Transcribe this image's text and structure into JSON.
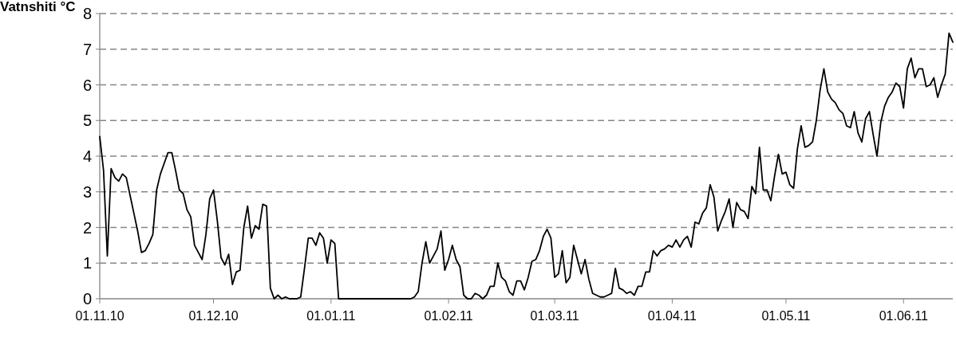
{
  "chart_data": {
    "type": "line",
    "title": "Vatnshiti °C",
    "xlim": [
      "2010-11-01",
      "2011-06-14"
    ],
    "xticks": [
      {
        "value": "2010-11-01",
        "label": "01.11.10"
      },
      {
        "value": "2010-12-01",
        "label": "01.12.10"
      },
      {
        "value": "2011-01-01",
        "label": "01.01.11"
      },
      {
        "value": "2011-02-01",
        "label": "01.02.11"
      },
      {
        "value": "2011-03-01",
        "label": "01.03.11"
      },
      {
        "value": "2011-04-01",
        "label": "01.04.11"
      },
      {
        "value": "2011-05-01",
        "label": "01.05.11"
      },
      {
        "value": "2011-06-01",
        "label": "01.06.11"
      }
    ],
    "ylim": [
      0,
      8
    ],
    "yticks": [
      0,
      1,
      2,
      3,
      4,
      5,
      6,
      7,
      8
    ],
    "grid": "y",
    "marker": "none",
    "line_style": "solid",
    "series": [
      {
        "color": "#000000",
        "x": [
          "2010-11-01",
          "2010-11-02",
          "2010-11-03",
          "2010-11-04",
          "2010-11-05",
          "2010-11-06",
          "2010-11-07",
          "2010-11-08",
          "2010-11-09",
          "2010-11-10",
          "2010-11-11",
          "2010-11-12",
          "2010-11-13",
          "2010-11-14",
          "2010-11-15",
          "2010-11-16",
          "2010-11-17",
          "2010-11-18",
          "2010-11-19",
          "2010-11-20",
          "2010-11-21",
          "2010-11-22",
          "2010-11-23",
          "2010-11-24",
          "2010-11-25",
          "2010-11-26",
          "2010-11-27",
          "2010-11-28",
          "2010-11-29",
          "2010-11-30",
          "2010-12-01",
          "2010-12-02",
          "2010-12-03",
          "2010-12-04",
          "2010-12-05",
          "2010-12-06",
          "2010-12-07",
          "2010-12-08",
          "2010-12-09",
          "2010-12-10",
          "2010-12-11",
          "2010-12-12",
          "2010-12-13",
          "2010-12-14",
          "2010-12-15",
          "2010-12-16",
          "2010-12-17",
          "2010-12-18",
          "2010-12-19",
          "2010-12-20",
          "2010-12-21",
          "2010-12-22",
          "2010-12-23",
          "2010-12-24",
          "2010-12-25",
          "2010-12-26",
          "2010-12-27",
          "2010-12-28",
          "2010-12-29",
          "2010-12-30",
          "2010-12-31",
          "2011-01-01",
          "2011-01-02",
          "2011-01-03",
          "2011-01-04",
          "2011-01-05",
          "2011-01-06",
          "2011-01-07",
          "2011-01-08",
          "2011-01-09",
          "2011-01-10",
          "2011-01-11",
          "2011-01-12",
          "2011-01-13",
          "2011-01-14",
          "2011-01-15",
          "2011-01-16",
          "2011-01-17",
          "2011-01-18",
          "2011-01-19",
          "2011-01-20",
          "2011-01-21",
          "2011-01-22",
          "2011-01-23",
          "2011-01-24",
          "2011-01-25",
          "2011-01-26",
          "2011-01-27",
          "2011-01-28",
          "2011-01-29",
          "2011-01-30",
          "2011-01-31",
          "2011-02-01",
          "2011-02-02",
          "2011-02-03",
          "2011-02-04",
          "2011-02-05",
          "2011-02-06",
          "2011-02-07",
          "2011-02-08",
          "2011-02-09",
          "2011-02-10",
          "2011-02-11",
          "2011-02-12",
          "2011-02-13",
          "2011-02-14",
          "2011-02-15",
          "2011-02-16",
          "2011-02-17",
          "2011-02-18",
          "2011-02-19",
          "2011-02-20",
          "2011-02-21",
          "2011-02-22",
          "2011-02-23",
          "2011-02-24",
          "2011-02-25",
          "2011-02-26",
          "2011-02-27",
          "2011-02-28",
          "2011-03-01",
          "2011-03-02",
          "2011-03-03",
          "2011-03-04",
          "2011-03-05",
          "2011-03-06",
          "2011-03-07",
          "2011-03-08",
          "2011-03-09",
          "2011-03-10",
          "2011-03-11",
          "2011-03-12",
          "2011-03-13",
          "2011-03-14",
          "2011-03-15",
          "2011-03-16",
          "2011-03-17",
          "2011-03-18",
          "2011-03-19",
          "2011-03-20",
          "2011-03-21",
          "2011-03-22",
          "2011-03-23",
          "2011-03-24",
          "2011-03-25",
          "2011-03-26",
          "2011-03-27",
          "2011-03-28",
          "2011-03-29",
          "2011-03-30",
          "2011-03-31",
          "2011-04-01",
          "2011-04-02",
          "2011-04-03",
          "2011-04-04",
          "2011-04-05",
          "2011-04-06",
          "2011-04-07",
          "2011-04-08",
          "2011-04-09",
          "2011-04-10",
          "2011-04-11",
          "2011-04-12",
          "2011-04-13",
          "2011-04-14",
          "2011-04-15",
          "2011-04-16",
          "2011-04-17",
          "2011-04-18",
          "2011-04-19",
          "2011-04-20",
          "2011-04-21",
          "2011-04-22",
          "2011-04-23",
          "2011-04-24",
          "2011-04-25",
          "2011-04-26",
          "2011-04-27",
          "2011-04-28",
          "2011-04-29",
          "2011-04-30",
          "2011-05-01",
          "2011-05-02",
          "2011-05-03",
          "2011-05-04",
          "2011-05-05",
          "2011-05-06",
          "2011-05-07",
          "2011-05-08",
          "2011-05-09",
          "2011-05-10",
          "2011-05-11",
          "2011-05-12",
          "2011-05-13",
          "2011-05-14",
          "2011-05-15",
          "2011-05-16",
          "2011-05-17",
          "2011-05-18",
          "2011-05-19",
          "2011-05-20",
          "2011-05-21",
          "2011-05-22",
          "2011-05-23",
          "2011-05-24",
          "2011-05-25",
          "2011-05-26",
          "2011-05-27",
          "2011-05-28",
          "2011-05-29",
          "2011-05-30",
          "2011-05-31",
          "2011-06-01",
          "2011-06-02",
          "2011-06-03",
          "2011-06-04",
          "2011-06-05",
          "2011-06-06",
          "2011-06-07",
          "2011-06-08",
          "2011-06-09",
          "2011-06-10",
          "2011-06-11",
          "2011-06-12",
          "2011-06-13",
          "2011-06-14"
        ],
        "values": [
          4.55,
          3.6,
          1.2,
          3.65,
          3.4,
          3.3,
          3.5,
          3.4,
          2.9,
          2.4,
          1.9,
          1.3,
          1.35,
          1.55,
          1.8,
          3.05,
          3.5,
          3.8,
          4.1,
          4.1,
          3.6,
          3.05,
          2.95,
          2.5,
          2.3,
          1.5,
          1.3,
          1.1,
          1.8,
          2.8,
          3.05,
          2.2,
          1.15,
          0.95,
          1.25,
          0.4,
          0.75,
          0.8,
          2.0,
          2.6,
          1.7,
          2.05,
          1.95,
          2.65,
          2.6,
          0.3,
          0,
          0.1,
          0,
          0.05,
          0,
          0,
          0,
          0.05,
          0.85,
          1.7,
          1.7,
          1.5,
          1.85,
          1.7,
          1.0,
          1.65,
          1.55,
          0,
          0,
          0,
          0,
          0,
          0,
          0,
          0,
          0,
          0,
          0,
          0,
          0,
          0,
          0,
          0,
          0,
          0,
          0,
          0,
          0.05,
          0.2,
          1.0,
          1.6,
          1.0,
          1.2,
          1.4,
          1.9,
          0.8,
          1.1,
          1.5,
          1.1,
          0.9,
          0.1,
          0,
          0,
          0.15,
          0.1,
          0,
          0.1,
          0.35,
          0.35,
          1.0,
          0.6,
          0.5,
          0.2,
          0.1,
          0.5,
          0.5,
          0.25,
          0.6,
          1.05,
          1.1,
          1.35,
          1.75,
          1.95,
          1.7,
          0.6,
          0.7,
          1.35,
          0.45,
          0.6,
          1.5,
          1.1,
          0.7,
          1.1,
          0.55,
          0.15,
          0.1,
          0.05,
          0.05,
          0.1,
          0.15,
          0.85,
          0.3,
          0.25,
          0.15,
          0.2,
          0.1,
          0.35,
          0.35,
          0.75,
          0.75,
          1.35,
          1.2,
          1.35,
          1.4,
          1.5,
          1.45,
          1.65,
          1.45,
          1.65,
          1.75,
          1.45,
          2.15,
          2.1,
          2.4,
          2.55,
          3.2,
          2.85,
          1.9,
          2.2,
          2.45,
          2.8,
          2.0,
          2.7,
          2.5,
          2.45,
          2.25,
          3.15,
          2.95,
          4.25,
          3.05,
          3.05,
          2.75,
          3.45,
          4.05,
          3.5,
          3.55,
          3.2,
          3.1,
          4.2,
          4.85,
          4.25,
          4.3,
          4.4,
          5.0,
          5.85,
          6.45,
          5.8,
          5.6,
          5.5,
          5.3,
          5.2,
          4.85,
          4.8,
          5.25,
          4.65,
          4.4,
          5.05,
          5.25,
          4.6,
          4.0,
          4.95,
          5.4,
          5.65,
          5.8,
          6.05,
          5.95,
          5.35,
          6.45,
          6.75,
          6.2,
          6.45,
          6.45,
          5.95,
          6.0,
          6.2,
          5.65,
          6.0,
          6.3,
          7.45,
          7.2
        ]
      }
    ]
  }
}
